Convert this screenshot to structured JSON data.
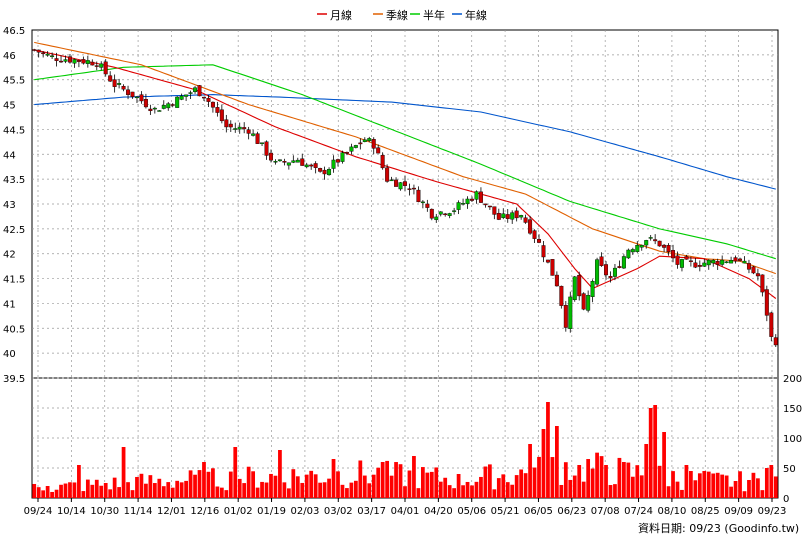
{
  "legend": [
    {
      "name": "月線",
      "color": "#dd0000"
    },
    {
      "name": "季線",
      "color": "#e06000"
    },
    {
      "name": "半年",
      "color": "#00cc00"
    },
    {
      "name": "年線",
      "color": "#0055cc"
    }
  ],
  "footer_text": "資料日期: 09/23 (Goodinfo.tw)",
  "chart_data": [
    {
      "type": "candlestick",
      "title": "",
      "ylim": [
        39.5,
        46.5
      ],
      "y_ticks": [
        "46.5",
        "46",
        "45.5",
        "45",
        "44.5",
        "44",
        "43.5",
        "43",
        "42.5",
        "42",
        "41.5",
        "41",
        "40.5",
        "40",
        "39.5"
      ],
      "x_ticks": [
        "09/24",
        "10/14",
        "10/30",
        "11/14",
        "12/01",
        "12/16",
        "01/02",
        "01/19",
        "02/03",
        "03/02",
        "03/17",
        "04/01",
        "04/20",
        "05/06",
        "05/21",
        "06/05",
        "06/23",
        "07/08",
        "07/24",
        "08/10",
        "08/25",
        "09/09",
        "09/23"
      ],
      "grid": true,
      "up_color": "#00bb00",
      "down_color": "#cc0000",
      "close_anchors": [
        [
          0,
          46.1
        ],
        [
          4,
          45.95
        ],
        [
          9,
          45.9
        ],
        [
          14,
          45.85
        ],
        [
          18,
          45.4
        ],
        [
          22,
          45.2
        ],
        [
          27,
          44.9
        ],
        [
          32,
          45.1
        ],
        [
          36,
          45.3
        ],
        [
          38,
          45.2
        ],
        [
          43,
          44.55
        ],
        [
          48,
          44.5
        ],
        [
          54,
          43.8
        ],
        [
          59,
          43.9
        ],
        [
          64,
          43.6
        ],
        [
          69,
          43.95
        ],
        [
          74,
          44.3
        ],
        [
          76,
          44.2
        ],
        [
          79,
          43.5
        ],
        [
          84,
          43.35
        ],
        [
          89,
          42.8
        ],
        [
          94,
          42.9
        ],
        [
          99,
          43.2
        ],
        [
          104,
          42.7
        ],
        [
          109,
          42.8
        ],
        [
          113,
          42.2
        ],
        [
          117,
          41.4
        ],
        [
          119,
          40.6
        ],
        [
          121,
          41.5
        ],
        [
          123,
          40.8
        ],
        [
          126,
          41.8
        ],
        [
          129,
          41.5
        ],
        [
          133,
          42.1
        ],
        [
          137,
          42.3
        ],
        [
          140,
          42.2
        ],
        [
          144,
          41.8
        ],
        [
          148,
          41.8
        ],
        [
          153,
          41.85
        ],
        [
          157,
          41.9
        ],
        [
          160,
          41.7
        ],
        [
          162,
          41.55
        ],
        [
          164,
          40.8
        ],
        [
          165,
          40.3
        ],
        [
          166,
          40.25
        ]
      ],
      "ma20_anchors": [
        [
          0,
          46.1
        ],
        [
          18,
          45.75
        ],
        [
          36,
          45.3
        ],
        [
          54,
          44.55
        ],
        [
          72,
          43.95
        ],
        [
          90,
          43.45
        ],
        [
          108,
          43.0
        ],
        [
          115,
          42.4
        ],
        [
          121,
          41.7
        ],
        [
          125,
          41.3
        ],
        [
          130,
          41.5
        ],
        [
          135,
          41.7
        ],
        [
          140,
          41.95
        ],
        [
          150,
          41.9
        ],
        [
          160,
          41.5
        ],
        [
          166,
          41.1
        ]
      ],
      "ma60_anchors": [
        [
          0,
          46.25
        ],
        [
          24,
          45.8
        ],
        [
          48,
          45.0
        ],
        [
          72,
          44.35
        ],
        [
          96,
          43.55
        ],
        [
          110,
          43.2
        ],
        [
          125,
          42.5
        ],
        [
          140,
          42.05
        ],
        [
          150,
          41.9
        ],
        [
          158,
          41.85
        ],
        [
          166,
          41.6
        ]
      ],
      "ma120_anchors": [
        [
          0,
          45.5
        ],
        [
          20,
          45.75
        ],
        [
          40,
          45.8
        ],
        [
          60,
          45.2
        ],
        [
          80,
          44.5
        ],
        [
          100,
          43.8
        ],
        [
          120,
          43.05
        ],
        [
          140,
          42.5
        ],
        [
          155,
          42.2
        ],
        [
          166,
          41.9
        ]
      ],
      "ma240_anchors": [
        [
          0,
          45.0
        ],
        [
          20,
          45.15
        ],
        [
          40,
          45.2
        ],
        [
          55,
          45.15
        ],
        [
          80,
          45.05
        ],
        [
          100,
          44.85
        ],
        [
          120,
          44.45
        ],
        [
          140,
          43.95
        ],
        [
          155,
          43.55
        ],
        [
          166,
          43.3
        ]
      ]
    },
    {
      "type": "bar",
      "name": "volume",
      "ylim": [
        0,
        200
      ],
      "y_ticks": [
        "200",
        "150",
        "100",
        "50",
        "0"
      ],
      "bar_color": "#ff0000",
      "base_levels": [
        [
          0,
          18
        ],
        [
          25,
          30
        ],
        [
          50,
          38
        ],
        [
          75,
          45
        ],
        [
          95,
          35
        ],
        [
          110,
          45
        ],
        [
          120,
          60
        ],
        [
          135,
          45
        ],
        [
          150,
          32
        ],
        [
          166,
          30
        ]
      ],
      "spikes": [
        [
          3,
          20
        ],
        [
          10,
          55
        ],
        [
          20,
          85
        ],
        [
          38,
          60
        ],
        [
          45,
          85
        ],
        [
          55,
          80
        ],
        [
          67,
          65
        ],
        [
          78,
          60
        ],
        [
          85,
          70
        ],
        [
          95,
          40
        ],
        [
          111,
          90
        ],
        [
          114,
          115
        ],
        [
          115,
          160
        ],
        [
          117,
          120
        ],
        [
          122,
          55
        ],
        [
          128,
          55
        ],
        [
          132,
          60
        ],
        [
          137,
          90
        ],
        [
          138,
          150
        ],
        [
          139,
          155
        ],
        [
          141,
          110
        ],
        [
          146,
          55
        ],
        [
          150,
          45
        ],
        [
          160,
          30
        ],
        [
          164,
          50
        ],
        [
          165,
          55
        ]
      ]
    }
  ]
}
